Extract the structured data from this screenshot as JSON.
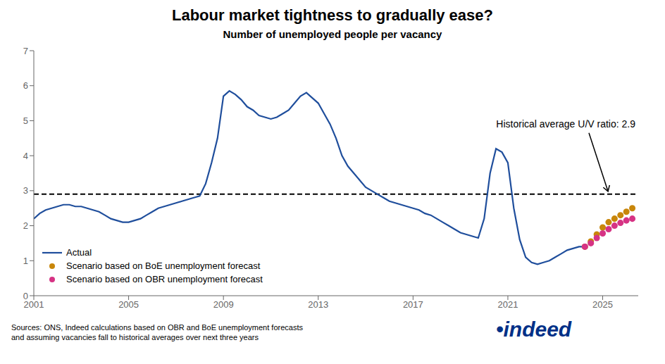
{
  "chart_data": {
    "type": "line",
    "title": "Labour market tightness to gradually ease?",
    "subtitle": "Number of unemployed people per vacancy",
    "source": "Sources: ONS, Indeed calculations based on OBR and BoE unemployment forecasts\nand assuming vacancies fall to historical averages over next three years",
    "logo": {
      "text": "•indeed",
      "color": "#003087"
    },
    "annotations": [
      "Historical average U/V ratio: 2.9"
    ],
    "xlim": [
      2001.0,
      2026.5
    ],
    "xticks": [
      2001,
      2005,
      2009,
      2013,
      2017,
      2021,
      2025
    ],
    "ylim": [
      0,
      7
    ],
    "yticks": [
      0,
      1,
      2,
      3,
      4,
      5,
      6,
      7
    ],
    "grid": false,
    "legend": "lower left",
    "hline": {
      "value": 2.9,
      "color": "#000000",
      "line_style": "dashed"
    },
    "series": [
      {
        "name": "Actual",
        "type": "line",
        "color": "#1f4e9c",
        "line_style": "solid",
        "x": [
          2001.0,
          2001.25,
          2001.5,
          2001.75,
          2002.0,
          2002.25,
          2002.5,
          2002.75,
          2003.0,
          2003.25,
          2003.5,
          2003.75,
          2004.0,
          2004.25,
          2004.5,
          2004.75,
          2005.0,
          2005.25,
          2005.5,
          2005.75,
          2006.0,
          2006.25,
          2006.5,
          2006.75,
          2007.0,
          2007.25,
          2007.5,
          2007.75,
          2008.0,
          2008.25,
          2008.5,
          2008.75,
          2009.0,
          2009.25,
          2009.5,
          2009.75,
          2010.0,
          2010.25,
          2010.5,
          2010.75,
          2011.0,
          2011.25,
          2011.5,
          2011.75,
          2012.0,
          2012.25,
          2012.5,
          2012.75,
          2013.0,
          2013.25,
          2013.5,
          2013.75,
          2014.0,
          2014.25,
          2014.5,
          2014.75,
          2015.0,
          2015.25,
          2015.5,
          2015.75,
          2016.0,
          2016.25,
          2016.5,
          2016.75,
          2017.0,
          2017.25,
          2017.5,
          2017.75,
          2018.0,
          2018.25,
          2018.5,
          2018.75,
          2019.0,
          2019.25,
          2019.5,
          2019.75,
          2020.0,
          2020.25,
          2020.5,
          2020.75,
          2021.0,
          2021.25,
          2021.5,
          2021.75,
          2022.0,
          2022.25,
          2022.5,
          2022.75,
          2023.0,
          2023.25,
          2023.5,
          2023.75,
          2024.0,
          2024.25
        ],
        "values": [
          2.2,
          2.35,
          2.45,
          2.5,
          2.55,
          2.6,
          2.6,
          2.55,
          2.55,
          2.5,
          2.45,
          2.4,
          2.3,
          2.2,
          2.15,
          2.1,
          2.1,
          2.15,
          2.2,
          2.3,
          2.4,
          2.5,
          2.55,
          2.6,
          2.65,
          2.7,
          2.75,
          2.8,
          2.85,
          3.2,
          3.8,
          4.5,
          5.7,
          5.85,
          5.75,
          5.6,
          5.4,
          5.3,
          5.15,
          5.1,
          5.05,
          5.1,
          5.2,
          5.3,
          5.5,
          5.7,
          5.8,
          5.65,
          5.5,
          5.2,
          4.9,
          4.5,
          4.0,
          3.7,
          3.5,
          3.3,
          3.1,
          3.0,
          2.9,
          2.8,
          2.7,
          2.65,
          2.6,
          2.55,
          2.5,
          2.45,
          2.35,
          2.3,
          2.2,
          2.1,
          2.0,
          1.9,
          1.8,
          1.75,
          1.7,
          1.65,
          2.2,
          3.5,
          4.2,
          4.1,
          3.8,
          2.5,
          1.6,
          1.1,
          0.95,
          0.9,
          0.95,
          1.0,
          1.1,
          1.2,
          1.3,
          1.35,
          1.4,
          1.4
        ]
      },
      {
        "name": "Scenario based on BoE unemployment forecast",
        "type": "scatter",
        "color": "#c8860a",
        "marker": "circle",
        "line_style": "none",
        "x": [
          2024.25,
          2024.5,
          2024.75,
          2025.0,
          2025.25,
          2025.5,
          2025.75,
          2026.0,
          2026.25
        ],
        "values": [
          1.4,
          1.55,
          1.75,
          1.95,
          2.1,
          2.2,
          2.3,
          2.4,
          2.5
        ]
      },
      {
        "name": "Scenario based on OBR unemployment forecast",
        "type": "scatter",
        "color": "#d63384",
        "marker": "circle",
        "line_style": "none",
        "x": [
          2024.25,
          2024.5,
          2024.75,
          2025.0,
          2025.25,
          2025.5,
          2025.75,
          2026.0,
          2026.25
        ],
        "values": [
          1.4,
          1.5,
          1.65,
          1.78,
          1.9,
          2.0,
          2.08,
          2.15,
          2.2
        ]
      }
    ]
  }
}
